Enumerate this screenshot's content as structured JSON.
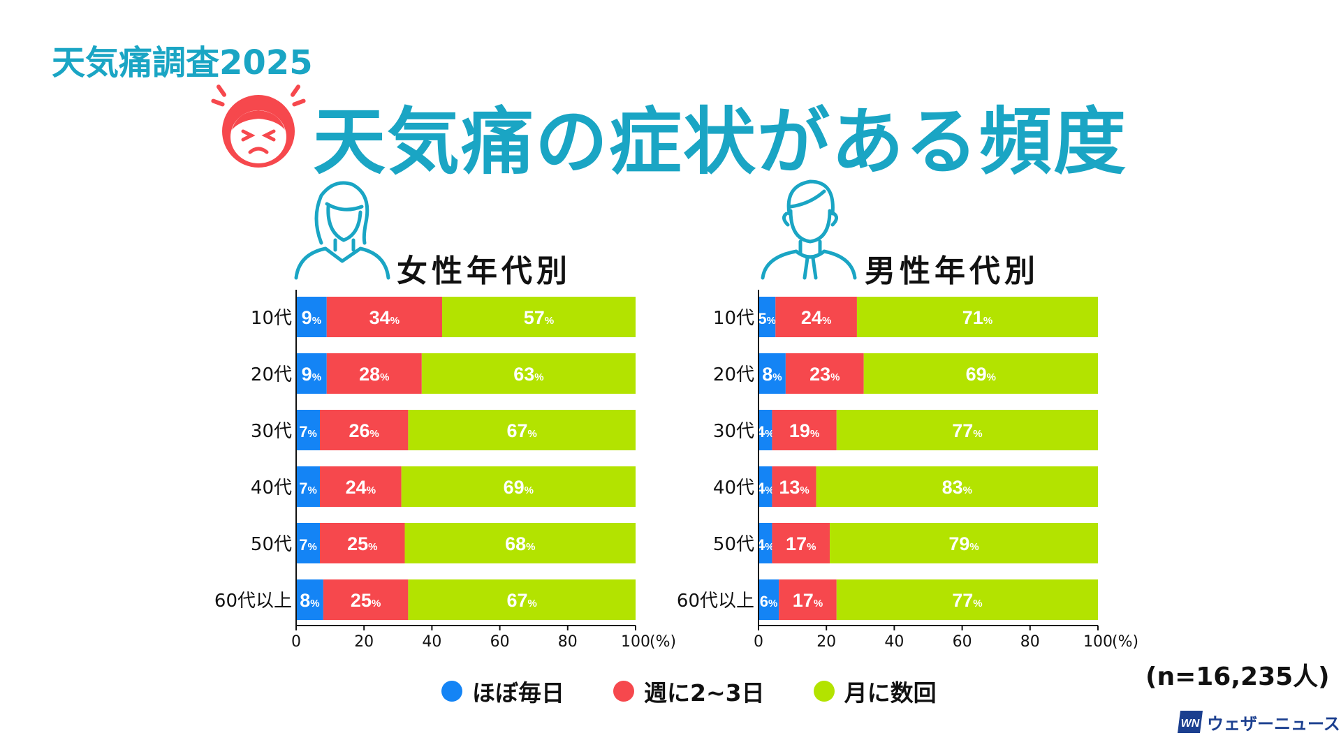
{
  "header": {
    "survey_label": "天気痛調査2025",
    "title": "天気痛の症状がある頻度"
  },
  "icons": {
    "headache": "headache-face-icon",
    "female": "woman-outline-icon",
    "male": "man-outline-icon",
    "brand": "weathernews-logo-icon"
  },
  "colors": {
    "daily": "#1484f5",
    "weekly": "#f6484d",
    "monthly": "#b3e300",
    "accent": "#1aa5c4"
  },
  "chart_data": [
    {
      "type": "bar",
      "stacked": true,
      "orientation": "horizontal",
      "title": "女性年代別",
      "categories": [
        "10代",
        "20代",
        "30代",
        "40代",
        "50代",
        "60代以上"
      ],
      "series": [
        {
          "name": "ほぼ毎日",
          "values": [
            9,
            9,
            7,
            7,
            7,
            8
          ]
        },
        {
          "name": "週に2~3日",
          "values": [
            34,
            28,
            26,
            24,
            25,
            25
          ]
        },
        {
          "name": "月に数回",
          "values": [
            57,
            63,
            67,
            69,
            68,
            67
          ]
        }
      ],
      "xlim": [
        0,
        100
      ],
      "xticks": [
        "0",
        "20",
        "40",
        "60",
        "80",
        "100"
      ],
      "x_unit": "(%)",
      "value_unit": "%"
    },
    {
      "type": "bar",
      "stacked": true,
      "orientation": "horizontal",
      "title": "男性年代別",
      "categories": [
        "10代",
        "20代",
        "30代",
        "40代",
        "50代",
        "60代以上"
      ],
      "series": [
        {
          "name": "ほぼ毎日",
          "values": [
            5,
            8,
            4,
            4,
            4,
            6
          ]
        },
        {
          "name": "週に2~3日",
          "values": [
            24,
            23,
            19,
            13,
            17,
            17
          ]
        },
        {
          "name": "月に数回",
          "values": [
            71,
            69,
            77,
            83,
            79,
            77
          ]
        }
      ],
      "xlim": [
        0,
        100
      ],
      "xticks": [
        "0",
        "20",
        "40",
        "60",
        "80",
        "100"
      ],
      "x_unit": "(%)",
      "value_unit": "%"
    }
  ],
  "legend": [
    {
      "label": "ほぼ毎日"
    },
    {
      "label": "週に2~3日"
    },
    {
      "label": "月に数回"
    }
  ],
  "footer": {
    "sample_size": "(n=16,235人)",
    "brand_name": "ウェザーニュース"
  }
}
